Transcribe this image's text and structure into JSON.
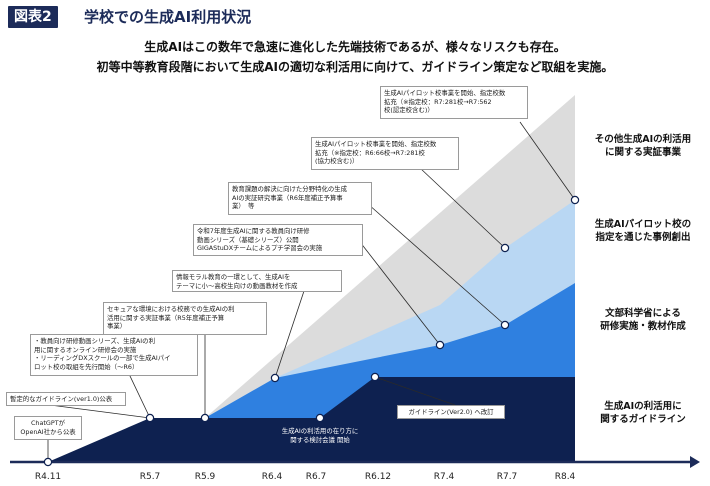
{
  "header": {
    "badge": "図表2",
    "title": "学校での生成AI利用状況"
  },
  "lead": {
    "line1": "生成AIはこの数年で急速に進化した先端技術であるが、様々なリスクも存在。",
    "line2": "初等中等教育段階において生成AIの適切な利活用に向けて、ガイドライン策定など取組を実施。"
  },
  "categories": [
    "その他生成AIの利活用\nに関する実証事業",
    "生成AIパイロット校の\n指定を通じた事例創出",
    "文部科学省による\n研修実施・教材作成",
    "生成AIの利活用に\n関するガイドライン"
  ],
  "timeline": [
    "R4.11",
    "R5.7",
    "R5.9",
    "R6.4",
    "R6.7",
    "R6.12",
    "R7.4",
    "R7.7",
    "R8.4"
  ],
  "callouts": {
    "chatgpt": "ChatGPTが\nOpenAI社から公表",
    "guideline_v1": "暫定的なガイドライン(ver1.0)公表",
    "teacher_videos": "・教員向け研修動画シリーズ、生成AIの利\n用に関するオンライン研修会の実施\n・リーディングDXスクールの一部で生成AIパイ\nロット校の取組を先行開始（～R6）",
    "secure_env": "セキュアな環境における校務での生成AIの利\n活用に関する実証事業（R5年度補正予算\n事業）",
    "moral_videos": "情報モラル教育の一環として、生成AIを\nテーマに小～高校生向けの動画教材を作成",
    "r7_videos": "令和7年度生成AIに関する教員向け研修\n動画シリーズ（基礎シリーズ）公開\nGIGAStuDXチームによるプチ学習会の実施",
    "field_research": "教育課題の解決に向けた分野特化の生成\nAIの実証研究事業（R6年度補正予算事\n業）　等",
    "pilot_r7_7": "生成AIパイロット校事業を開始、指定校数\n拡充（※指定校：R6:66校→R7:281校\n(協力校含む)）",
    "pilot_r8_4": "生成AIパイロット校事業を開始、指定校数\n拡充（※指定校：R7:281校→R7:562\n校(認定校含む)）",
    "meeting": "生成AIの利活用の在り方に\n関する検討会議 開始",
    "guideline_v2": "ガイドライン(Ver2.0) へ改訂"
  },
  "colors": {
    "navy": "#0e2150",
    "blue": "#2f7fe0",
    "lightblue": "#b8d6f2",
    "gray": "#dcdcdc",
    "marker": "#ffffff"
  }
}
